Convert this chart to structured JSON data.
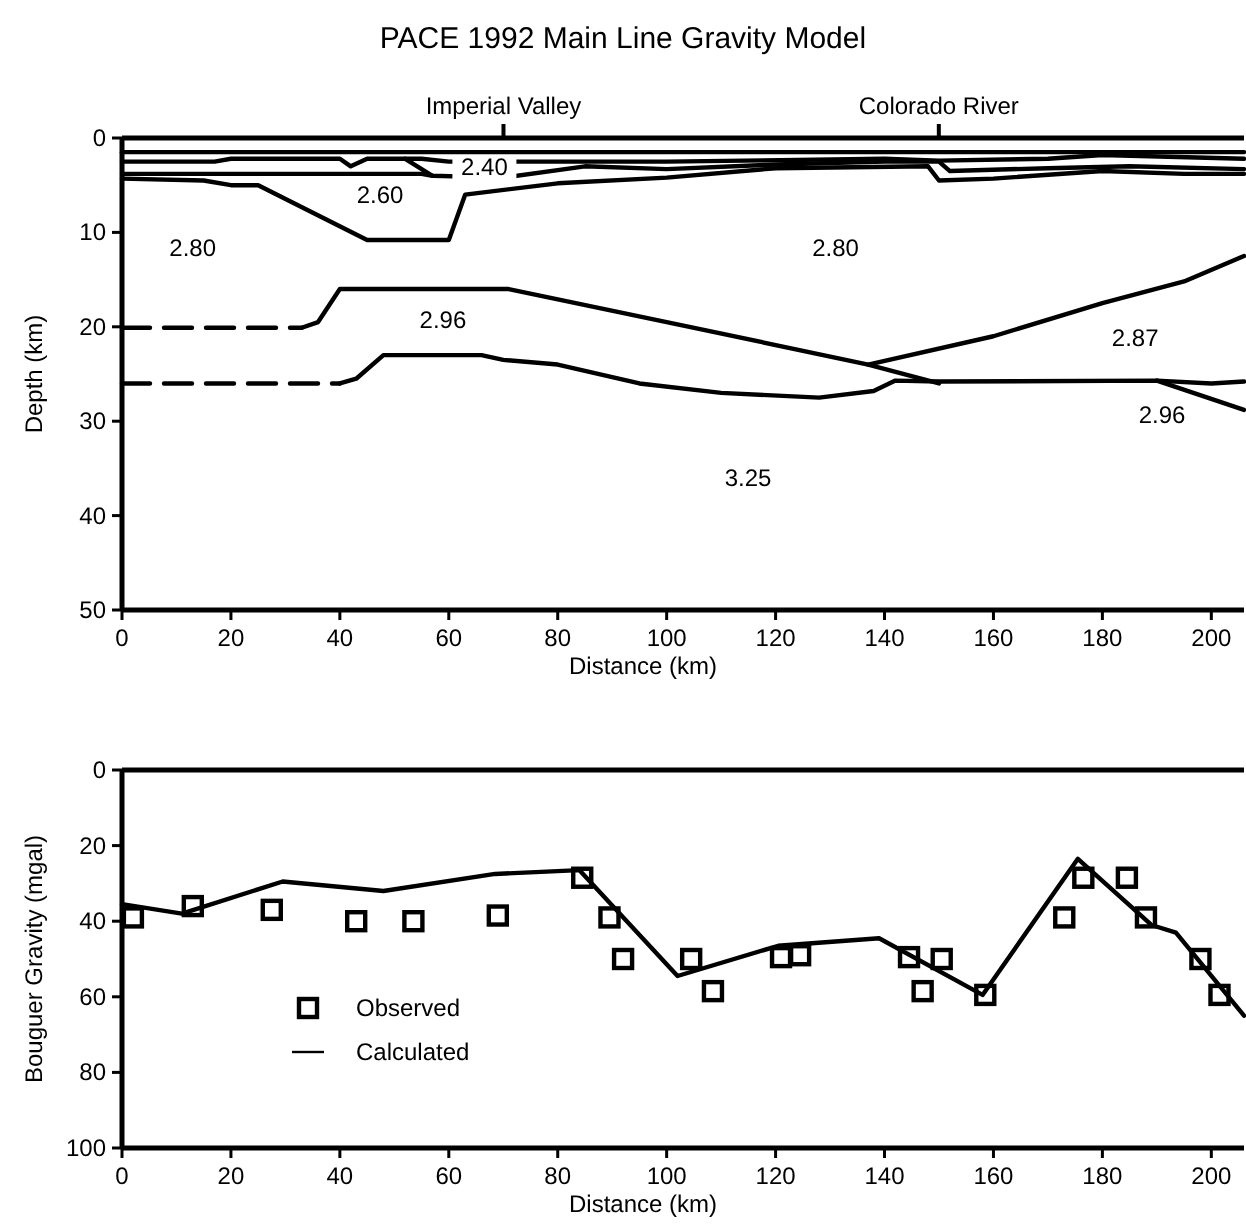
{
  "chart_data": [
    {
      "type": "line",
      "title": "PACE 1992 Main Line Gravity Model",
      "xlabel": "Distance (km)",
      "ylabel": "Depth (km)",
      "xlim": [
        0,
        206
      ],
      "ylim": [
        50,
        0
      ],
      "xticks": [
        0,
        20,
        40,
        60,
        80,
        100,
        120,
        140,
        160,
        180,
        200
      ],
      "yticks": [
        0,
        10,
        20,
        30,
        40,
        50
      ],
      "series": [
        {
          "color": "#000000",
          "x": [
            0,
            206
          ],
          "values": [
            1.5,
            1.5
          ]
        },
        {
          "color": "#000000",
          "x": [
            0,
            17,
            20,
            40,
            42,
            45,
            50,
            55,
            60,
            100,
            140,
            150,
            170,
            180,
            206
          ],
          "values": [
            2.5,
            2.5,
            2.2,
            2.2,
            3,
            2.2,
            2.2,
            2.2,
            2.5,
            2.5,
            2.2,
            2.4,
            2.2,
            1.8,
            2.2
          ]
        },
        {
          "color": "#000000",
          "x": [
            52,
            57,
            70,
            85,
            100,
            120,
            140,
            150,
            152,
            170,
            185,
            206
          ],
          "values": [
            2.2,
            4,
            4.2,
            3,
            3.3,
            2.8,
            2.5,
            2.5,
            3.5,
            3.2,
            3,
            3.3
          ]
        },
        {
          "color": "#000000",
          "x": [
            0,
            55,
            57
          ],
          "values": [
            3.8,
            3.8,
            4
          ]
        },
        {
          "color": "#000000",
          "x": [
            0,
            15,
            20,
            25,
            45,
            60,
            63,
            80,
            100,
            120,
            148,
            150,
            160,
            180,
            195,
            206
          ],
          "values": [
            4.3,
            4.5,
            5,
            5,
            10.8,
            10.8,
            6,
            4.8,
            4.2,
            3.2,
            3,
            4.5,
            4.3,
            3.5,
            3.8,
            3.8
          ]
        },
        {
          "color": "#000000",
          "line_style": "dashed",
          "x": [
            0,
            33
          ],
          "values": [
            20.1,
            20.1
          ]
        },
        {
          "color": "#000000",
          "x": [
            33,
            36,
            40,
            71,
            100,
            137,
            150
          ],
          "values": [
            20.1,
            19.5,
            16,
            16,
            19.5,
            24,
            26
          ]
        },
        {
          "color": "#000000",
          "x": [
            137,
            160,
            180,
            195,
            206
          ],
          "values": [
            24,
            21,
            17.5,
            15.2,
            12.5
          ]
        },
        {
          "color": "#000000",
          "line_style": "dashed",
          "x": [
            0,
            40
          ],
          "values": [
            26,
            26
          ]
        },
        {
          "color": "#000000",
          "x": [
            40,
            43,
            48,
            66,
            70,
            80,
            95,
            110,
            128,
            138,
            142,
            150,
            190,
            200,
            206
          ],
          "values": [
            26,
            25.5,
            23,
            23,
            23.5,
            24,
            26,
            27,
            27.5,
            26.8,
            25.7,
            25.8,
            25.7,
            26,
            25.8
          ]
        },
        {
          "color": "#000000",
          "x": [
            190,
            206
          ],
          "values": [
            25.7,
            28.8
          ]
        }
      ],
      "annotations": [
        "Imperial Valley",
        "Colorado River",
        "2.40",
        "2.60",
        "2.80",
        "2.80",
        "2.96",
        "2.87",
        "2.96",
        "3.25"
      ]
    },
    {
      "type": "line",
      "xlabel": "Distance (km)",
      "ylabel": "Bouguer Gravity (mgal)",
      "xlim": [
        0,
        206
      ],
      "ylim": [
        100,
        0
      ],
      "xticks": [
        0,
        20,
        40,
        60,
        80,
        100,
        120,
        140,
        160,
        180,
        200
      ],
      "yticks": [
        0,
        20,
        40,
        60,
        80,
        100
      ],
      "legend": "bottom left",
      "series": [
        {
          "name": "Observed",
          "type": "scatter",
          "marker": "square",
          "color": "#000000",
          "x": [
            2,
            13,
            27.5,
            43,
            53.5,
            69,
            84.5,
            89.5,
            92,
            104.5,
            108.5,
            121,
            124.5,
            144.5,
            147,
            150.5,
            158.5,
            173,
            176.5,
            184.5,
            188,
            198,
            201.5
          ],
          "values": [
            39,
            36,
            37,
            40,
            40,
            38.5,
            28.5,
            39,
            50,
            50,
            58.5,
            49.5,
            49,
            49.5,
            58.5,
            50,
            59.5,
            39,
            28.5,
            28.5,
            39,
            50,
            59.5
          ]
        },
        {
          "name": "Calculated",
          "color": "#000000",
          "x": [
            0,
            11,
            29.5,
            48,
            68.5,
            84,
            102,
            120.5,
            139,
            158,
            175.5,
            189,
            193.5,
            206
          ],
          "values": [
            35.5,
            38,
            29.5,
            32,
            27.5,
            26.5,
            54.5,
            46.5,
            44.5,
            59.5,
            23.5,
            41,
            43,
            65
          ]
        }
      ]
    }
  ]
}
